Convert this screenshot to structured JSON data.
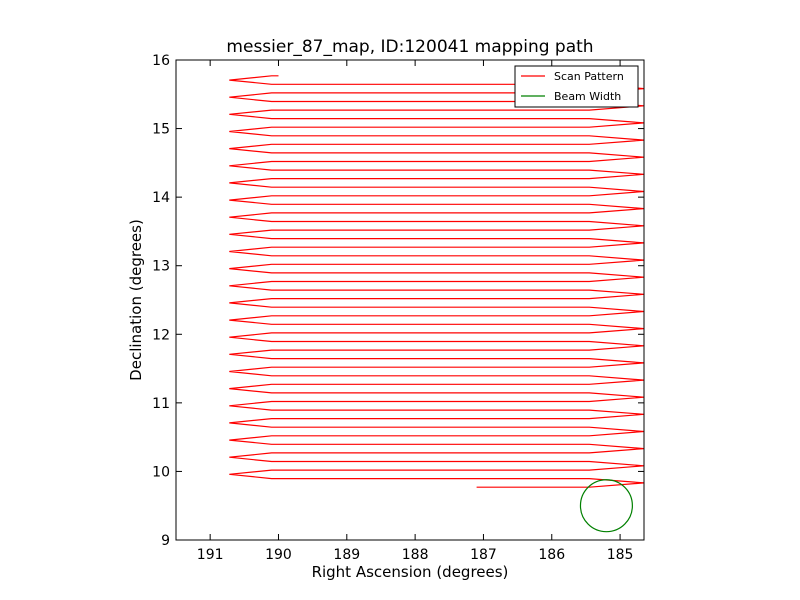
{
  "chart_data": {
    "type": "line",
    "title": "messier_87_map, ID:120041 mapping path",
    "xlabel": "Right Ascension (degrees)",
    "ylabel": "Declination (degrees)",
    "xlim": [
      191.5,
      184.65
    ],
    "ylim": [
      9,
      16
    ],
    "x_axis_inverted": true,
    "xticks": [
      191,
      190,
      189,
      188,
      187,
      186,
      185
    ],
    "yticks": [
      9,
      10,
      11,
      12,
      13,
      14,
      15,
      16
    ],
    "legend": {
      "position": "top-right",
      "entries": [
        "Scan Pattern",
        "Beam Width"
      ]
    },
    "grid": false,
    "scan_pattern": {
      "name": "Scan Pattern",
      "color": "#ff0000",
      "ra_left_edge": 190.72,
      "ra_left_inner": 190.1,
      "ra_right_inner": 185.45,
      "ra_right_edge": 184.65,
      "dec_start": 9.77,
      "dec_end": 15.77,
      "dec_spacing": 0.125,
      "start_point": [
        187.1,
        9.77
      ],
      "end_point": [
        190.0,
        15.77
      ]
    },
    "beam_width": {
      "name": "Beam Width",
      "color": "#008000",
      "center": [
        185.2,
        9.5
      ],
      "radius_deg": 0.38
    }
  }
}
